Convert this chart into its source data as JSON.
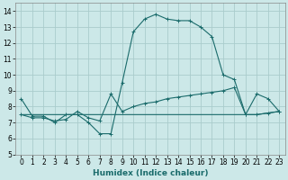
{
  "xlabel": "Humidex (Indice chaleur)",
  "x_ticks": [
    0,
    1,
    2,
    3,
    4,
    5,
    6,
    7,
    8,
    9,
    10,
    11,
    12,
    13,
    14,
    15,
    16,
    17,
    18,
    19,
    20,
    21,
    22,
    23
  ],
  "xlim": [
    -0.5,
    23.5
  ],
  "ylim": [
    5,
    14.5
  ],
  "y_ticks": [
    5,
    6,
    7,
    8,
    9,
    10,
    11,
    12,
    13,
    14
  ],
  "background_color": "#cce8e8",
  "grid_color": "#aacccc",
  "line_color": "#1a6b6b",
  "series1_x": [
    0,
    1,
    2,
    3,
    4,
    5,
    6,
    7,
    8,
    9,
    10,
    11,
    12,
    13,
    14,
    15,
    16,
    17,
    18,
    19,
    20,
    21,
    22,
    23
  ],
  "series1_y": [
    8.5,
    7.4,
    7.4,
    7.0,
    7.5,
    7.5,
    7.0,
    6.3,
    6.3,
    9.5,
    12.7,
    13.5,
    13.8,
    13.5,
    13.4,
    13.4,
    13.0,
    12.4,
    10.0,
    9.7,
    7.5,
    8.8,
    8.5,
    7.7
  ],
  "series2_x": [
    0,
    1,
    2,
    3,
    4,
    5,
    6,
    7,
    8,
    9,
    10,
    11,
    12,
    13,
    14,
    15,
    16,
    17,
    18,
    19,
    20,
    21,
    22,
    23
  ],
  "series2_y": [
    7.5,
    7.3,
    7.3,
    7.1,
    7.2,
    7.7,
    7.3,
    7.1,
    8.8,
    7.7,
    8.0,
    8.2,
    8.3,
    8.5,
    8.6,
    8.7,
    8.8,
    8.9,
    9.0,
    9.2,
    7.5,
    7.5,
    7.6,
    7.7
  ],
  "series3_x": [
    0,
    1,
    2,
    3,
    4,
    5,
    6,
    7,
    8,
    9,
    10,
    11,
    12,
    13,
    14,
    15,
    16,
    17,
    18,
    19,
    20,
    21,
    22,
    23
  ],
  "series3_y": [
    7.5,
    7.5,
    7.5,
    7.5,
    7.5,
    7.5,
    7.5,
    7.5,
    7.5,
    7.5,
    7.5,
    7.5,
    7.5,
    7.5,
    7.5,
    7.5,
    7.5,
    7.5,
    7.5,
    7.5,
    7.5,
    7.5,
    7.6,
    7.7
  ]
}
